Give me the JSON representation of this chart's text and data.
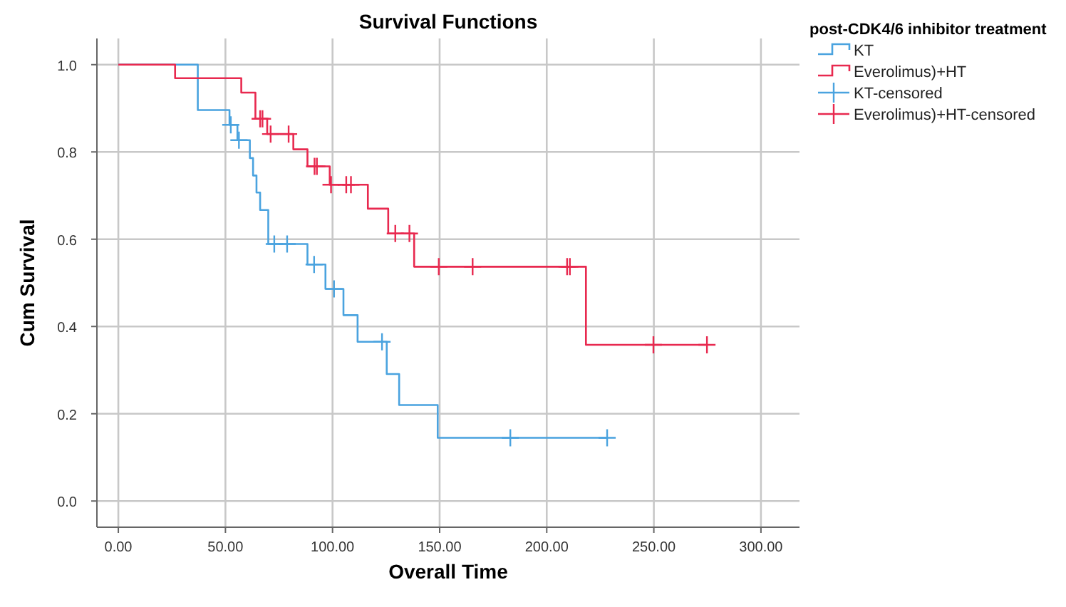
{
  "chart_data": {
    "type": "step",
    "title": "Survival Functions",
    "xlabel": "Overall Time",
    "ylabel": "Cum Survival",
    "legend_title": "post-CDK4/6 inhibitor treatment",
    "xlim": [
      -10,
      318
    ],
    "ylim": [
      -0.06,
      1.06
    ],
    "xticks": [
      {
        "value": 0,
        "label": "0.00"
      },
      {
        "value": 50,
        "label": "50.00"
      },
      {
        "value": 100,
        "label": "100.00"
      },
      {
        "value": 150,
        "label": "150.00"
      },
      {
        "value": 200,
        "label": "200.00"
      },
      {
        "value": 250,
        "label": "250.00"
      },
      {
        "value": 300,
        "label": "300.00"
      }
    ],
    "yticks": [
      {
        "value": 0,
        "label": "0.0"
      },
      {
        "value": 0.2,
        "label": "0.2"
      },
      {
        "value": 0.4,
        "label": "0.4"
      },
      {
        "value": 0.6,
        "label": "0.6"
      },
      {
        "value": 0.8,
        "label": "0.8"
      },
      {
        "value": 1,
        "label": "1.0"
      }
    ],
    "grid": true,
    "legend": "right",
    "series": [
      {
        "name": "KT",
        "color": "#4aa3df",
        "marker": "none",
        "x": [
          0,
          37.1,
          51.9,
          55.6,
          61.4,
          62.9,
          64.5,
          66.2,
          70,
          88.3,
          96.7,
          105.1,
          111.7,
          125.3,
          131.1,
          149.1,
          228.2
        ],
        "values": [
          1,
          0.896,
          0.862,
          0.827,
          0.786,
          0.746,
          0.707,
          0.667,
          0.589,
          0.542,
          0.486,
          0.426,
          0.365,
          0.291,
          0.22,
          0.145,
          0.145
        ]
      },
      {
        "name": "Everolimus)+HT",
        "color": "#e8294f",
        "marker": "none",
        "x": [
          0,
          26.5,
          57.4,
          64,
          69.5,
          81.7,
          88.3,
          98.7,
          116.5,
          126,
          138.1,
          218.3,
          274.8
        ],
        "values": [
          1,
          0.969,
          0.936,
          0.876,
          0.841,
          0.806,
          0.767,
          0.725,
          0.67,
          0.613,
          0.537,
          0.358,
          0.358
        ]
      },
      {
        "name": "KT-censored",
        "type": "scatter",
        "color": "#4aa3df",
        "marker": "cross",
        "x": [
          52.5,
          56.3,
          72.8,
          78.8,
          91.4,
          100.7,
          123.1,
          183,
          228.2
        ],
        "values": [
          0.862,
          0.827,
          0.589,
          0.589,
          0.542,
          0.486,
          0.365,
          0.145,
          0.145
        ]
      },
      {
        "name": "Everolimus)+HT-censored",
        "type": "scatter",
        "color": "#e8294f",
        "marker": "cross",
        "x": [
          66.2,
          67.3,
          71.1,
          79.5,
          91.6,
          92.7,
          99.3,
          106.4,
          108.6,
          129.3,
          135.9,
          149.6,
          165.4,
          209.5,
          210.8,
          249.8,
          274.8
        ],
        "values": [
          0.876,
          0.876,
          0.841,
          0.841,
          0.767,
          0.767,
          0.725,
          0.725,
          0.725,
          0.613,
          0.613,
          0.537,
          0.537,
          0.537,
          0.537,
          0.358,
          0.358
        ]
      }
    ]
  }
}
